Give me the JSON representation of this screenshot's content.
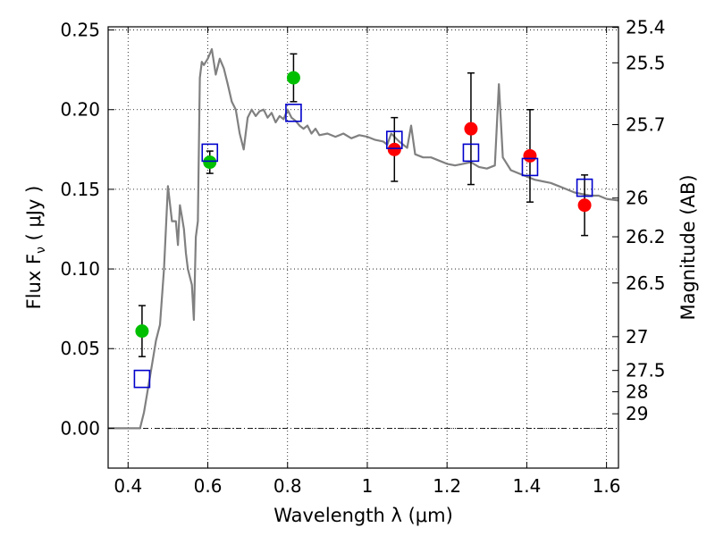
{
  "chart_data": {
    "type": "scatter",
    "xlabel": "Wavelength  λ (μm)",
    "ylabel": "Flux  F",
    "ylabel_sub": "ν",
    "ylabel_units": "  ( μJy )",
    "ylabel_right": "Magnitude (AB)",
    "xlim": [
      0.35,
      1.63
    ],
    "ylim": [
      -0.025,
      0.252
    ],
    "grid": true,
    "x_ticks": [
      {
        "value": 0.4,
        "label": "0.4"
      },
      {
        "value": 0.6,
        "label": "0.6"
      },
      {
        "value": 0.8,
        "label": "0.8"
      },
      {
        "value": 1.0,
        "label": "1"
      },
      {
        "value": 1.2,
        "label": "1.2"
      },
      {
        "value": 1.4,
        "label": "1.4"
      },
      {
        "value": 1.6,
        "label": "1.6"
      }
    ],
    "y_ticks": [
      {
        "value": 0.0,
        "label": "0.00"
      },
      {
        "value": 0.05,
        "label": "0.05"
      },
      {
        "value": 0.1,
        "label": "0.10"
      },
      {
        "value": 0.15,
        "label": "0.15"
      },
      {
        "value": 0.2,
        "label": "0.20"
      },
      {
        "value": 0.25,
        "label": "0.25"
      }
    ],
    "right_ticks": [
      {
        "flux": 0.2516,
        "label": "25.4"
      },
      {
        "flux": 0.2294,
        "label": "25.5"
      },
      {
        "flux": 0.1906,
        "label": "25.7"
      },
      {
        "flux": 0.1445,
        "label": "26"
      },
      {
        "flux": 0.1202,
        "label": "26.2"
      },
      {
        "flux": 0.0912,
        "label": "26.5"
      },
      {
        "flux": 0.0575,
        "label": "27"
      },
      {
        "flux": 0.0363,
        "label": "27.5"
      },
      {
        "flux": 0.0229,
        "label": "28"
      },
      {
        "flux": 0.0091,
        "label": "29"
      }
    ],
    "series": [
      {
        "kind": "line",
        "color": "#808080",
        "x": [
          0.35,
          0.4,
          0.43,
          0.44,
          0.45,
          0.46,
          0.47,
          0.48,
          0.49,
          0.5,
          0.51,
          0.52,
          0.525,
          0.53,
          0.535,
          0.54,
          0.545,
          0.55,
          0.56,
          0.565,
          0.57,
          0.575,
          0.58,
          0.585,
          0.59,
          0.6,
          0.61,
          0.62,
          0.63,
          0.64,
          0.65,
          0.66,
          0.67,
          0.68,
          0.69,
          0.7,
          0.71,
          0.72,
          0.73,
          0.74,
          0.75,
          0.76,
          0.77,
          0.78,
          0.79,
          0.8,
          0.81,
          0.82,
          0.83,
          0.84,
          0.85,
          0.86,
          0.87,
          0.88,
          0.9,
          0.92,
          0.94,
          0.96,
          0.98,
          1.0,
          1.02,
          1.04,
          1.05,
          1.06,
          1.08,
          1.1,
          1.11,
          1.12,
          1.14,
          1.16,
          1.18,
          1.2,
          1.22,
          1.24,
          1.26,
          1.28,
          1.3,
          1.32,
          1.33,
          1.34,
          1.36,
          1.38,
          1.4,
          1.42,
          1.44,
          1.46,
          1.48,
          1.5,
          1.52,
          1.54,
          1.56,
          1.58,
          1.6,
          1.63
        ],
        "y": [
          0.0,
          0.0,
          0.0,
          0.01,
          0.025,
          0.04,
          0.055,
          0.065,
          0.1,
          0.152,
          0.13,
          0.13,
          0.115,
          0.14,
          0.133,
          0.125,
          0.11,
          0.1,
          0.09,
          0.068,
          0.12,
          0.13,
          0.22,
          0.23,
          0.228,
          0.232,
          0.238,
          0.222,
          0.232,
          0.226,
          0.216,
          0.205,
          0.2,
          0.185,
          0.175,
          0.195,
          0.2,
          0.196,
          0.199,
          0.2,
          0.195,
          0.198,
          0.192,
          0.196,
          0.194,
          0.2,
          0.195,
          0.193,
          0.19,
          0.188,
          0.19,
          0.185,
          0.188,
          0.184,
          0.185,
          0.183,
          0.185,
          0.182,
          0.184,
          0.183,
          0.181,
          0.18,
          0.178,
          0.185,
          0.18,
          0.176,
          0.19,
          0.172,
          0.17,
          0.17,
          0.168,
          0.166,
          0.165,
          0.166,
          0.167,
          0.164,
          0.163,
          0.165,
          0.216,
          0.17,
          0.162,
          0.16,
          0.158,
          0.156,
          0.155,
          0.154,
          0.152,
          0.15,
          0.148,
          0.147,
          0.146,
          0.146,
          0.144,
          0.143
        ]
      },
      {
        "kind": "markers",
        "marker": "circle",
        "color": "#00bf00",
        "x": [
          0.435,
          0.605,
          0.815
        ],
        "y": [
          0.061,
          0.167,
          0.22
        ],
        "yerr": [
          0.016,
          0.007,
          0.015
        ]
      },
      {
        "kind": "markers",
        "marker": "circle",
        "color": "#ff0000",
        "x": [
          1.068,
          1.26,
          1.408,
          1.545
        ],
        "y": [
          0.175,
          0.188,
          0.171,
          0.14
        ],
        "yerr": [
          0.02,
          0.035,
          0.029,
          0.019
        ]
      },
      {
        "kind": "markers",
        "marker": "square",
        "color": "#0000cc",
        "x": [
          0.435,
          0.605,
          0.815,
          1.068,
          1.26,
          1.408,
          1.545
        ],
        "y": [
          0.031,
          0.173,
          0.198,
          0.181,
          0.173,
          0.164,
          0.151
        ]
      }
    ]
  }
}
